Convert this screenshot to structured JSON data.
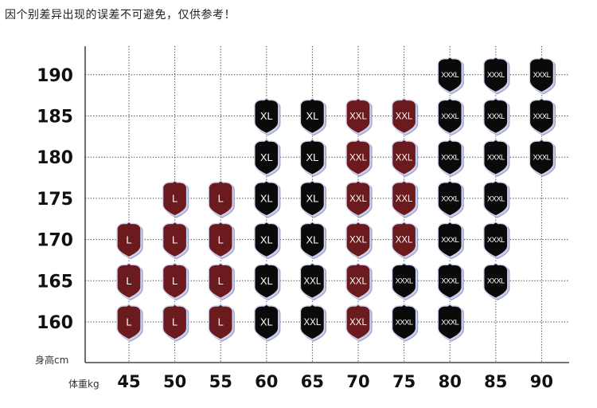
{
  "note": "因个别差异出现的误差不可避免，仅供参考！",
  "chart_data": {
    "type": "table",
    "title": "",
    "ylabel": "身高cm",
    "xlabel": "体重kg",
    "x_ticks": [
      "45",
      "50",
      "55",
      "60",
      "65",
      "70",
      "75",
      "80",
      "85",
      "90"
    ],
    "y_ticks": [
      "190",
      "185",
      "180",
      "175",
      "170",
      "165",
      "160"
    ],
    "grid": true,
    "colors": {
      "L": "#6b1a1e",
      "XL": "#0a0a0a",
      "XXL_red": "#6b1a1e",
      "XXL_black": "#0a0a0a",
      "XXXL": "#0a0a0a",
      "badge_border": "#b8bde0"
    },
    "cells": [
      {
        "w": 45,
        "h": 170,
        "size": "L",
        "color": "red"
      },
      {
        "w": 45,
        "h": 165,
        "size": "L",
        "color": "red"
      },
      {
        "w": 45,
        "h": 160,
        "size": "L",
        "color": "red"
      },
      {
        "w": 50,
        "h": 175,
        "size": "L",
        "color": "red"
      },
      {
        "w": 50,
        "h": 170,
        "size": "L",
        "color": "red"
      },
      {
        "w": 50,
        "h": 165,
        "size": "L",
        "color": "red"
      },
      {
        "w": 50,
        "h": 160,
        "size": "L",
        "color": "red"
      },
      {
        "w": 55,
        "h": 175,
        "size": "L",
        "color": "red"
      },
      {
        "w": 55,
        "h": 170,
        "size": "L",
        "color": "red"
      },
      {
        "w": 55,
        "h": 165,
        "size": "L",
        "color": "red"
      },
      {
        "w": 55,
        "h": 160,
        "size": "L",
        "color": "red"
      },
      {
        "w": 60,
        "h": 185,
        "size": "XL",
        "color": "black"
      },
      {
        "w": 60,
        "h": 180,
        "size": "XL",
        "color": "black"
      },
      {
        "w": 60,
        "h": 175,
        "size": "XL",
        "color": "black"
      },
      {
        "w": 60,
        "h": 170,
        "size": "XL",
        "color": "black"
      },
      {
        "w": 60,
        "h": 165,
        "size": "XL",
        "color": "black"
      },
      {
        "w": 60,
        "h": 160,
        "size": "XL",
        "color": "black"
      },
      {
        "w": 65,
        "h": 185,
        "size": "XL",
        "color": "black"
      },
      {
        "w": 65,
        "h": 180,
        "size": "XL",
        "color": "black"
      },
      {
        "w": 65,
        "h": 175,
        "size": "XL",
        "color": "black"
      },
      {
        "w": 65,
        "h": 170,
        "size": "XL",
        "color": "black"
      },
      {
        "w": 65,
        "h": 165,
        "size": "XXL",
        "color": "black"
      },
      {
        "w": 65,
        "h": 160,
        "size": "XXL",
        "color": "black"
      },
      {
        "w": 70,
        "h": 185,
        "size": "XXL",
        "color": "red"
      },
      {
        "w": 70,
        "h": 180,
        "size": "XXL",
        "color": "red"
      },
      {
        "w": 70,
        "h": 175,
        "size": "XXL",
        "color": "red"
      },
      {
        "w": 70,
        "h": 170,
        "size": "XXL",
        "color": "red"
      },
      {
        "w": 70,
        "h": 165,
        "size": "XXL",
        "color": "red"
      },
      {
        "w": 70,
        "h": 160,
        "size": "XXL",
        "color": "red"
      },
      {
        "w": 75,
        "h": 185,
        "size": "XXL",
        "color": "red"
      },
      {
        "w": 75,
        "h": 180,
        "size": "XXL",
        "color": "red"
      },
      {
        "w": 75,
        "h": 175,
        "size": "XXL",
        "color": "red"
      },
      {
        "w": 75,
        "h": 170,
        "size": "XXL",
        "color": "red"
      },
      {
        "w": 75,
        "h": 165,
        "size": "XXXL",
        "color": "black"
      },
      {
        "w": 75,
        "h": 160,
        "size": "XXXL",
        "color": "black"
      },
      {
        "w": 80,
        "h": 190,
        "size": "XXXL",
        "color": "black"
      },
      {
        "w": 80,
        "h": 185,
        "size": "XXXL",
        "color": "black"
      },
      {
        "w": 80,
        "h": 180,
        "size": "XXXL",
        "color": "black"
      },
      {
        "w": 80,
        "h": 175,
        "size": "XXXL",
        "color": "black"
      },
      {
        "w": 80,
        "h": 170,
        "size": "XXXL",
        "color": "black"
      },
      {
        "w": 80,
        "h": 165,
        "size": "XXXL",
        "color": "black"
      },
      {
        "w": 80,
        "h": 160,
        "size": "XXXL",
        "color": "black"
      },
      {
        "w": 85,
        "h": 190,
        "size": "XXXL",
        "color": "black"
      },
      {
        "w": 85,
        "h": 185,
        "size": "XXXL",
        "color": "black"
      },
      {
        "w": 85,
        "h": 180,
        "size": "XXXL",
        "color": "black"
      },
      {
        "w": 85,
        "h": 175,
        "size": "XXXL",
        "color": "black"
      },
      {
        "w": 85,
        "h": 170,
        "size": "XXXL",
        "color": "black"
      },
      {
        "w": 85,
        "h": 165,
        "size": "XXXL",
        "color": "black"
      },
      {
        "w": 90,
        "h": 190,
        "size": "XXXL",
        "color": "black"
      },
      {
        "w": 90,
        "h": 185,
        "size": "XXXL",
        "color": "black"
      },
      {
        "w": 90,
        "h": 180,
        "size": "XXXL",
        "color": "black"
      }
    ]
  }
}
